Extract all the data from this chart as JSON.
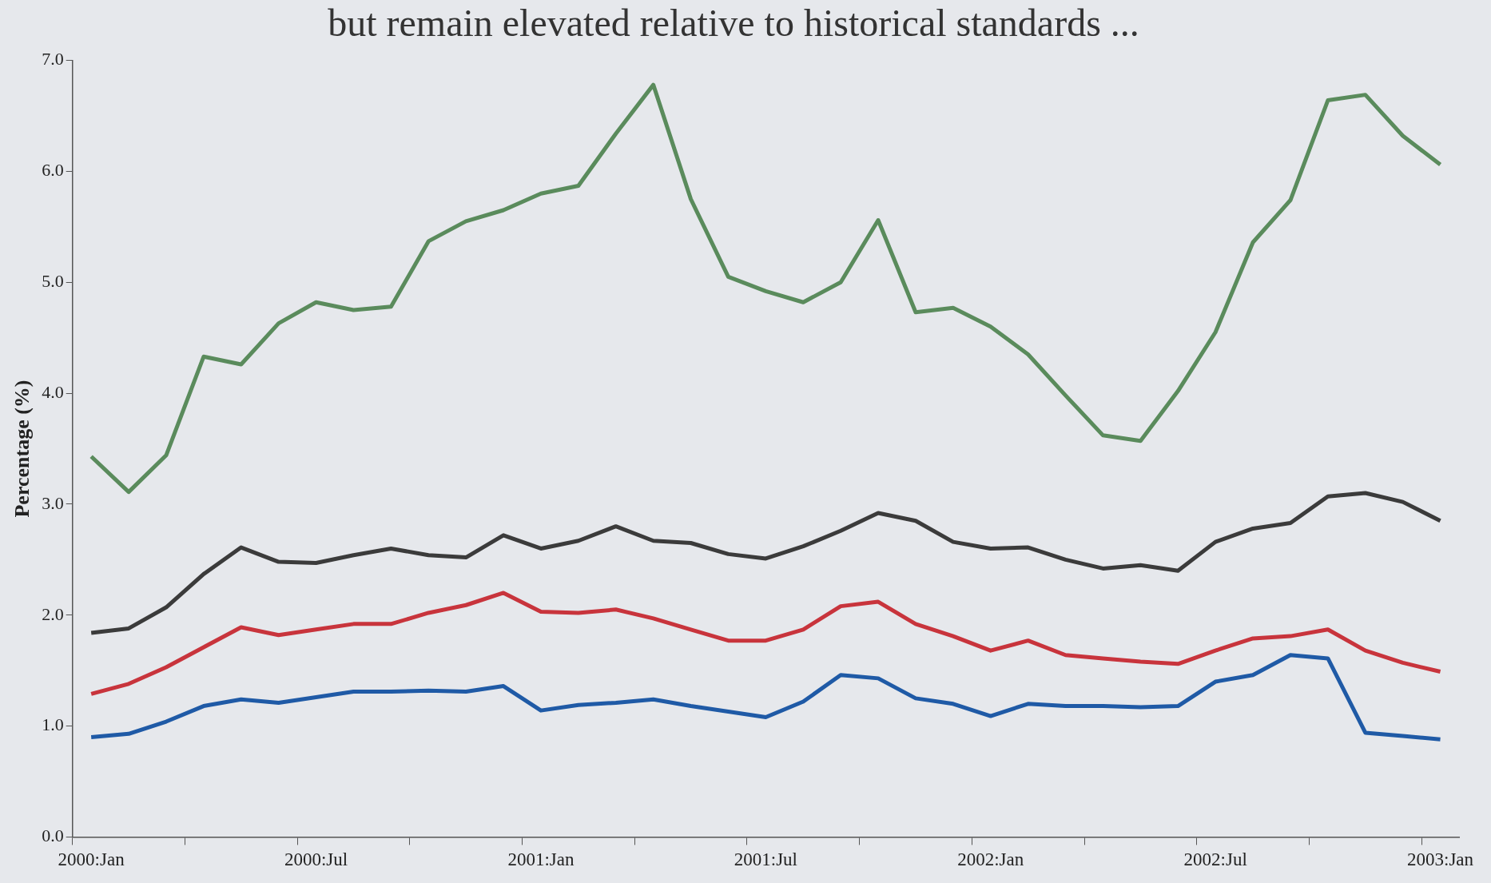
{
  "chart_data": {
    "type": "line",
    "title": "but remain elevated relative to historical standards ...",
    "ylabel": "Percentage (%)",
    "categories": [
      "2000:Jan",
      null,
      null,
      null,
      null,
      null,
      "2000:Jul",
      null,
      null,
      null,
      null,
      null,
      "2001:Jan",
      null,
      null,
      null,
      null,
      null,
      "2001:Jul",
      null,
      null,
      null,
      null,
      null,
      "2002:Jan",
      null,
      null,
      null,
      null,
      null,
      "2002:Jul",
      null,
      null,
      null,
      null,
      null,
      "2003:Jan"
    ],
    "series": [
      {
        "color": "#5a8b5c",
        "values": [
          3.43,
          3.11,
          3.44,
          4.33,
          4.26,
          4.63,
          4.82,
          4.75,
          4.78,
          5.37,
          5.55,
          5.65,
          5.8,
          5.87,
          6.34,
          6.78,
          5.75,
          5.05,
          4.92,
          4.82,
          5.0,
          5.56,
          4.73,
          4.77,
          4.6,
          4.35,
          3.98,
          3.62,
          3.57,
          4.02,
          4.55,
          5.36,
          5.74,
          6.64,
          6.69,
          6.32,
          6.06
        ]
      },
      {
        "color": "#3b3b3b",
        "values": [
          1.84,
          1.88,
          2.07,
          2.37,
          2.61,
          2.48,
          2.47,
          2.54,
          2.6,
          2.54,
          2.52,
          2.72,
          2.6,
          2.67,
          2.8,
          2.67,
          2.65,
          2.55,
          2.51,
          2.62,
          2.76,
          2.92,
          2.85,
          2.66,
          2.6,
          2.61,
          2.5,
          2.42,
          2.45,
          2.4,
          2.66,
          2.78,
          2.83,
          3.07,
          3.1,
          3.02,
          2.85
        ]
      },
      {
        "color": "#c8343c",
        "values": [
          1.29,
          1.38,
          1.53,
          1.71,
          1.89,
          1.82,
          1.87,
          1.92,
          1.92,
          2.02,
          2.09,
          2.2,
          2.03,
          2.02,
          2.05,
          1.97,
          1.87,
          1.77,
          1.77,
          1.87,
          2.08,
          2.12,
          1.92,
          1.81,
          1.68,
          1.77,
          1.64,
          1.61,
          1.58,
          1.56,
          1.68,
          1.79,
          1.81,
          1.87,
          1.68,
          1.57,
          1.49
        ]
      },
      {
        "color": "#1f5aa6",
        "values": [
          0.9,
          0.93,
          1.04,
          1.18,
          1.24,
          1.21,
          1.26,
          1.31,
          1.31,
          1.32,
          1.31,
          1.36,
          1.14,
          1.19,
          1.21,
          1.24,
          1.18,
          1.13,
          1.08,
          1.22,
          1.46,
          1.43,
          1.25,
          1.2,
          1.09,
          1.2,
          1.18,
          1.18,
          1.17,
          1.18,
          1.4,
          1.46,
          1.64,
          1.61,
          0.94,
          0.91,
          0.88
        ]
      }
    ],
    "ylim": [
      0,
      7
    ],
    "yticks": [
      {
        "value": 0,
        "label": "0.0"
      },
      {
        "value": 1,
        "label": "1.0"
      },
      {
        "value": 2,
        "label": "2.0"
      },
      {
        "value": 3,
        "label": "3.0"
      },
      {
        "value": 4,
        "label": "4.0"
      },
      {
        "value": 5,
        "label": "5.0"
      },
      {
        "value": 6,
        "label": "6.0"
      },
      {
        "value": 7,
        "label": "7.0"
      }
    ],
    "grid": false,
    "legend": false,
    "marker": "none",
    "line_style": "solid"
  }
}
